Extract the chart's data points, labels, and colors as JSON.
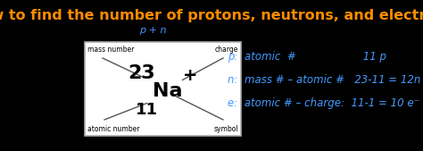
{
  "bg_color": "#000000",
  "title": "How to find the number of protons, neutrons, and electrons",
  "title_color": "#FF8C00",
  "title_fontsize": 11.5,
  "box_color": "#FFFFFF",
  "blue_color": "#4499FF",
  "black": "#000000",
  "label_mass_number": "mass number",
  "label_charge": "charge",
  "label_atomic_number": "atomic number",
  "label_symbol": "symbol",
  "element_symbol": "Na",
  "mass_number": "23",
  "atomic_number": "11",
  "charge": "+",
  "annotation_pn": "p + n",
  "annotation_p": "p",
  "line1": "p:  atomic  #                    11 p",
  "line2": "n:  mass # – atomic #   23-11 = 12n",
  "line3": "e:  atomic # – charge:  11-1 = 10 e⁻"
}
